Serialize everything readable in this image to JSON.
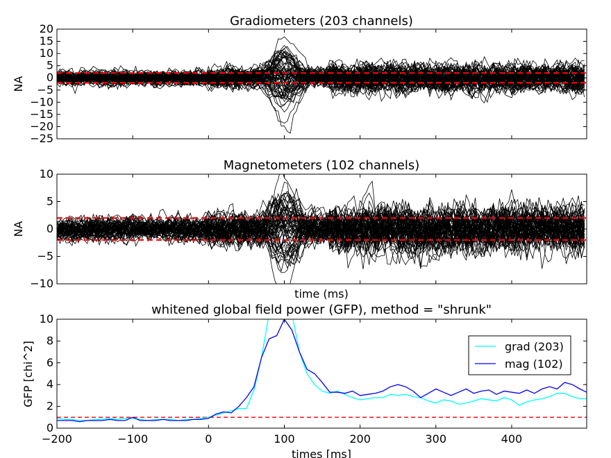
{
  "chart_data": [
    {
      "type": "line",
      "title": "Gradiometers (203 channels)",
      "xlabel": "",
      "ylabel": "NA",
      "xlim": [
        -200,
        499
      ],
      "ylim": [
        -25,
        20
      ],
      "yticks": [
        "20",
        "15",
        "10",
        "5",
        "0",
        "−5",
        "−10",
        "−15",
        "−20",
        "−25"
      ],
      "ytick_values": [
        20,
        15,
        10,
        5,
        0,
        -5,
        -10,
        -15,
        -20,
        -25
      ],
      "threshold_lines": [
        2,
        -2
      ],
      "trace_color": "#000000",
      "threshold_color": "#ff0000",
      "series_description_values": {
        "baseline_amplitude": 2,
        "peak_time_ms": 100,
        "peak_max": 16,
        "peak_min": -20,
        "late_amplitude": 4
      }
    },
    {
      "type": "line",
      "title": "Magnetometers (102 channels)",
      "xlabel": "time (ms)",
      "ylabel": "NA",
      "xlim": [
        -200,
        499
      ],
      "ylim": [
        -10,
        10
      ],
      "yticks": [
        "10",
        "5",
        "0",
        "−5",
        "−10"
      ],
      "ytick_values": [
        10,
        5,
        0,
        -5,
        -10
      ],
      "threshold_lines": [
        2,
        -2
      ],
      "trace_color": "#000000",
      "threshold_color": "#ff0000",
      "series_description_values": {
        "baseline_amplitude": 1.5,
        "peak_time_ms": 100,
        "peak_max": 8.5,
        "peak_min": -8,
        "late_amplitude": 3
      }
    },
    {
      "type": "line",
      "title": "whitened global field power (GFP), method = \"shrunk\"",
      "xlabel": "times [ms]",
      "ylabel": "GFP [chi^2]",
      "xlim": [
        -200,
        499
      ],
      "ylim": [
        0,
        10
      ],
      "xticks": [
        "−200",
        "−100",
        "0",
        "100",
        "200",
        "300",
        "400"
      ],
      "xtick_values": [
        -200,
        -100,
        0,
        100,
        200,
        300,
        400
      ],
      "yticks": [
        "0",
        "2",
        "4",
        "6",
        "8",
        "10"
      ],
      "ytick_values": [
        0,
        2,
        4,
        6,
        8,
        10
      ],
      "reference_line": 1,
      "reference_color": "#ff0000",
      "legend_position": "upper-right",
      "series": [
        {
          "name": "grad (203)",
          "color": "#00ffff",
          "x": [
            -200,
            -190,
            -180,
            -170,
            -160,
            -150,
            -140,
            -130,
            -120,
            -110,
            -100,
            -90,
            -80,
            -70,
            -60,
            -50,
            -40,
            -30,
            -20,
            -10,
            0,
            10,
            20,
            30,
            40,
            50,
            60,
            70,
            80,
            90,
            100,
            110,
            120,
            130,
            140,
            150,
            160,
            170,
            180,
            190,
            200,
            210,
            220,
            230,
            240,
            250,
            260,
            270,
            280,
            290,
            300,
            310,
            320,
            330,
            340,
            350,
            360,
            370,
            380,
            390,
            400,
            410,
            420,
            430,
            440,
            450,
            460,
            470,
            480,
            490,
            499
          ],
          "values": [
            0.9,
            0.8,
            0.8,
            0.7,
            0.7,
            0.8,
            0.8,
            0.9,
            0.8,
            0.9,
            0.9,
            0.8,
            0.7,
            0.8,
            0.8,
            0.8,
            0.7,
            0.8,
            0.8,
            0.9,
            1.0,
            1.2,
            1.4,
            1.6,
            1.8,
            1.8,
            3.5,
            6.5,
            10.5,
            12,
            11,
            10.5,
            7,
            5,
            4,
            3.4,
            3.2,
            3.4,
            3.1,
            2.8,
            2.6,
            2.7,
            2.8,
            2.8,
            3.1,
            3.0,
            3.1,
            2.9,
            2.8,
            2.5,
            2.3,
            2.6,
            2.5,
            2.2,
            2.3,
            2.5,
            2.7,
            2.6,
            2.5,
            2.8,
            2.6,
            2.1,
            2.4,
            2.6,
            2.7,
            2.9,
            3.2,
            3.2,
            2.9,
            2.7,
            2.7
          ]
        },
        {
          "name": "mag (102)",
          "color": "#0000ff",
          "x": [
            -200,
            -190,
            -180,
            -170,
            -160,
            -150,
            -140,
            -130,
            -120,
            -110,
            -100,
            -90,
            -80,
            -70,
            -60,
            -50,
            -40,
            -30,
            -20,
            -10,
            0,
            10,
            20,
            30,
            40,
            50,
            60,
            70,
            80,
            90,
            100,
            110,
            120,
            130,
            140,
            150,
            160,
            170,
            180,
            190,
            200,
            210,
            220,
            230,
            240,
            250,
            260,
            270,
            280,
            290,
            300,
            310,
            320,
            330,
            340,
            350,
            360,
            370,
            380,
            390,
            400,
            410,
            420,
            430,
            440,
            450,
            460,
            470,
            480,
            490,
            499
          ],
          "values": [
            0.7,
            0.7,
            0.7,
            0.6,
            0.7,
            0.7,
            0.7,
            0.8,
            0.7,
            0.7,
            1.0,
            0.7,
            0.7,
            0.7,
            0.8,
            0.7,
            0.7,
            0.7,
            0.8,
            0.8,
            0.9,
            1.3,
            1.5,
            1.4,
            2.0,
            2.8,
            3.8,
            6.5,
            8.2,
            8.5,
            10,
            9,
            7,
            5.4,
            5,
            4.2,
            3.3,
            3.3,
            3.2,
            3.4,
            3.0,
            3.1,
            3.2,
            3.4,
            3.8,
            4.0,
            3.8,
            3.4,
            2.8,
            3.2,
            3.6,
            3.3,
            3.0,
            3.3,
            3.6,
            3.2,
            3.4,
            3.5,
            3.1,
            3.4,
            3.3,
            3.2,
            3.5,
            3.2,
            3.6,
            3.8,
            3.6,
            4.2,
            4.0,
            3.6,
            3.3
          ]
        }
      ]
    }
  ]
}
